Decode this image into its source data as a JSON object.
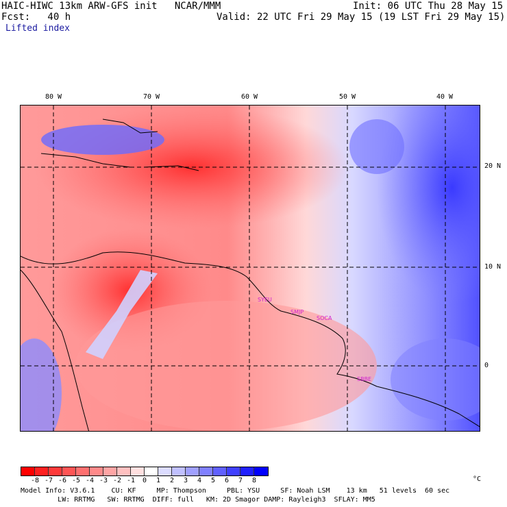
{
  "header": {
    "title_left": "HAIC-HIWC 13km ARW-GFS init   NCAR/MMM",
    "init": "Init: 06 UTC Thu 28 May 15",
    "fcst_label": "Fcst:   40 h",
    "valid": "Valid: 22 UTC Fri 29 May 15 (19 LST Fri 29 May 15)",
    "field": "Lifted index"
  },
  "map": {
    "lon_labels": [
      "80 W",
      "70 W",
      "60 W",
      "50 W",
      "40 W"
    ],
    "lat_labels": [
      "20 N",
      "10 N",
      "0"
    ],
    "stations": [
      "SYEU",
      "SMJP",
      "SOCA",
      "SBBE"
    ]
  },
  "colorbar": {
    "labels": [
      "-8",
      "-7",
      "-6",
      "-5",
      "-4",
      "-3",
      "-2",
      "-1",
      "0",
      "1",
      "2",
      "3",
      "4",
      "5",
      "6",
      "7",
      "8"
    ],
    "unit": "°C",
    "colors": [
      "#ff0000",
      "#ff2020",
      "#ff3a3a",
      "#ff5555",
      "#ff7070",
      "#ff8a8a",
      "#ffa5a5",
      "#ffc0c0",
      "#ffe0e0",
      "#ffffff",
      "#dcdcff",
      "#c0c0ff",
      "#a0a0ff",
      "#8080ff",
      "#6060ff",
      "#4040ff",
      "#2020ff",
      "#0000ff"
    ]
  },
  "footer": {
    "line1": "Model Info: V3.6.1    CU: KF     MP: Thompson     PBL: YSU     SF: Noah LSM    13 km   51 levels  60 sec",
    "line2": "         LW: RRTMG   SW: RRTMG  DIFF: full   KM: 2D Smagor DAMP: Rayleigh3  SFLAY: MM5"
  }
}
